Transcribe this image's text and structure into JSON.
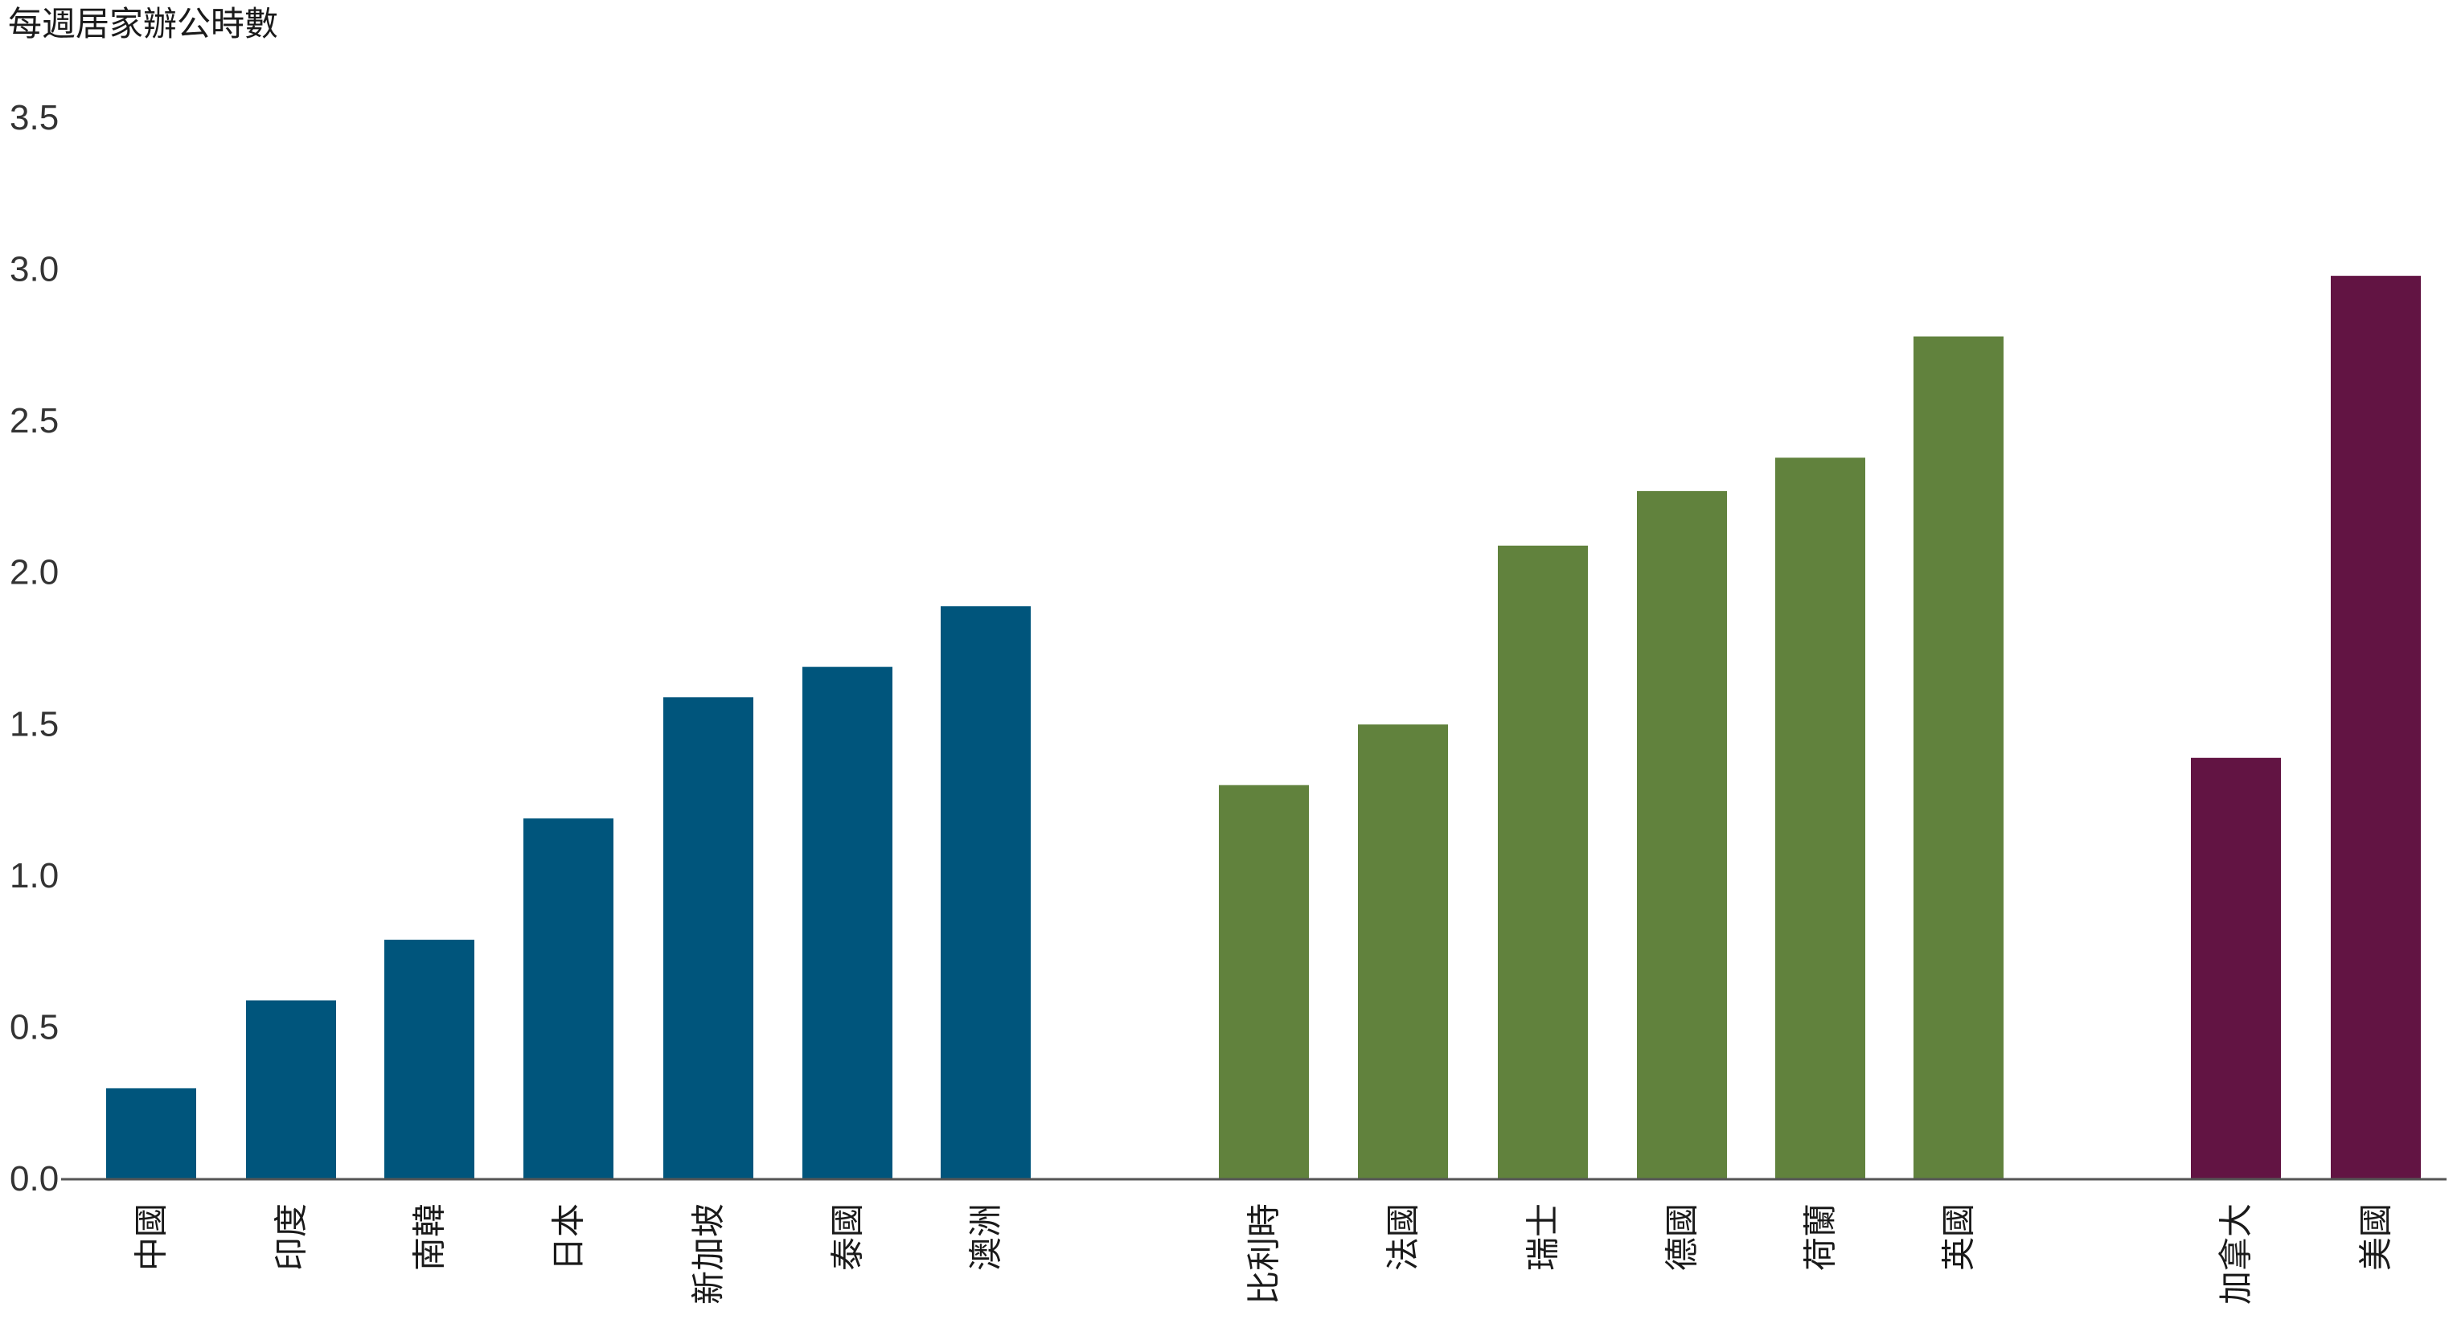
{
  "chart_data": {
    "type": "bar",
    "title": "",
    "ylabel": "每週居家辦公時數",
    "xlabel": "",
    "ylim": [
      0,
      3.5
    ],
    "yticks": [
      "0.0",
      "0.5",
      "1.0",
      "1.5",
      "2.0",
      "2.5",
      "3.0",
      "3.5"
    ],
    "grid": false,
    "legend": "none",
    "groups": [
      {
        "color": "#00557C",
        "categories": [
          "中國",
          "印度",
          "南韓",
          "日本",
          "新加坡",
          "泰國",
          "澳洲"
        ],
        "values": [
          0.3,
          0.59,
          0.79,
          1.19,
          1.59,
          1.69,
          1.89
        ]
      },
      {
        "color": "#61823D",
        "categories": [
          "比利時",
          "法國",
          "瑞士",
          "德國",
          "荷蘭",
          "英國"
        ],
        "values": [
          1.3,
          1.5,
          2.09,
          2.27,
          2.38,
          2.78
        ]
      },
      {
        "color": "#621443",
        "categories": [
          "加拿大",
          "美國"
        ],
        "values": [
          1.39,
          2.98
        ]
      }
    ]
  }
}
